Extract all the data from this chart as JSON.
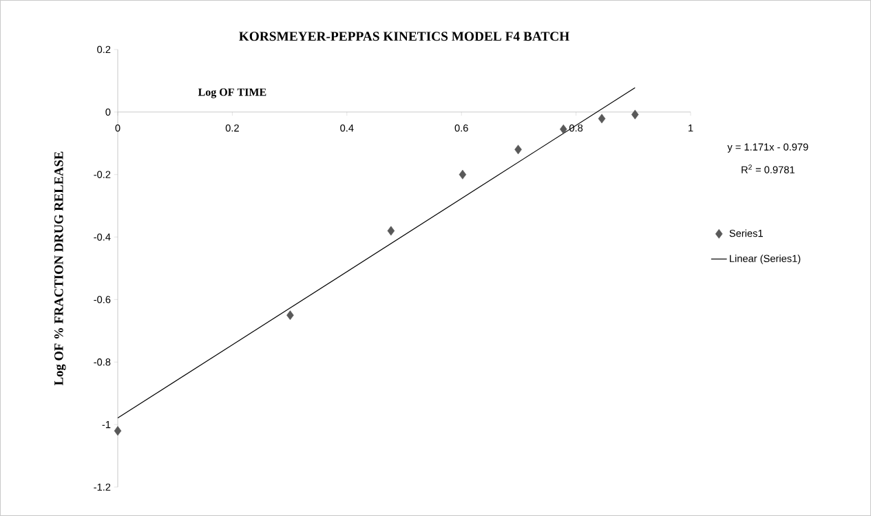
{
  "chart_data": {
    "type": "scatter",
    "title": "KORSMEYER-PEPPAS KINETICS MODEL F4 BATCH",
    "xlabel": "Log OF TIME",
    "ylabel": "Log OF % FRACTION DRUG RELEASE",
    "x": [
      0,
      0.301,
      0.477,
      0.602,
      0.699,
      0.778,
      0.845,
      0.903
    ],
    "series": [
      {
        "name": "Series1",
        "color": "#595959",
        "marker": "diamond",
        "values": [
          -1.02,
          -0.65,
          -0.38,
          -0.2,
          -0.12,
          -0.055,
          -0.021,
          -0.008
        ]
      },
      {
        "name": "Linear (Series1)",
        "type": "line",
        "color": "#000000",
        "marker": "none",
        "line_style": "solid",
        "x": [
          0,
          0.903
        ],
        "values": [
          -0.979,
          0.078
        ]
      }
    ],
    "annotations": [
      "y = 1.171x - 0.979",
      "R$^{2}$ = 0.9781"
    ],
    "xlim": [
      0,
      1
    ],
    "ylim": [
      -1.2,
      0.2
    ],
    "xticks": [
      0,
      0.2,
      0.4,
      0.6,
      0.8,
      1
    ],
    "yticks": [
      0.2,
      0,
      -0.2,
      -0.4,
      -0.6,
      -0.8,
      -1,
      -1.2
    ],
    "grid": false,
    "legend": "right"
  }
}
